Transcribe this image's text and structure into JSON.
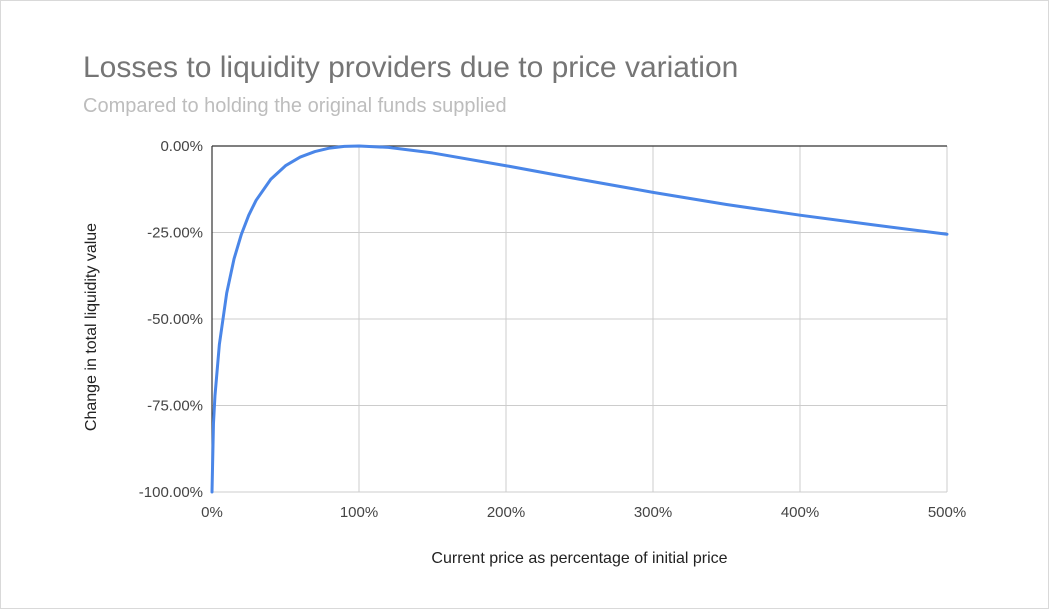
{
  "chart_data": {
    "type": "line",
    "title": "Losses to liquidity providers due to price variation",
    "subtitle": "Compared to holding the original funds supplied",
    "xlabel": "Current price as percentage of initial price",
    "ylabel": "Change in total liquidity value",
    "xlim": [
      0,
      500
    ],
    "ylim": [
      -100,
      0
    ],
    "x_ticks": [
      0,
      100,
      200,
      300,
      400,
      500
    ],
    "x_tick_labels": [
      "0%",
      "100%",
      "200%",
      "300%",
      "400%",
      "500%"
    ],
    "y_ticks": [
      0,
      -25,
      -50,
      -75,
      -100
    ],
    "y_tick_labels": [
      "0.00%",
      "-25.00%",
      "-50.00%",
      "-75.00%",
      "-100.00%"
    ],
    "grid": true,
    "legend": "none",
    "series": [
      {
        "color": "#4a86e8",
        "x": [
          0,
          1,
          2,
          5,
          10,
          15,
          20,
          25,
          30,
          40,
          50,
          60,
          70,
          80,
          90,
          100,
          120,
          150,
          200,
          250,
          300,
          350,
          400,
          450,
          500
        ],
        "y": [
          -100,
          -80.2,
          -72.3,
          -57.4,
          -42.5,
          -32.6,
          -25.5,
          -20.0,
          -15.7,
          -9.6,
          -5.7,
          -3.2,
          -1.6,
          -0.6,
          -0.1,
          0,
          -0.4,
          -2.0,
          -5.7,
          -9.6,
          -13.4,
          -16.9,
          -20.0,
          -22.8,
          -25.5
        ]
      }
    ]
  }
}
